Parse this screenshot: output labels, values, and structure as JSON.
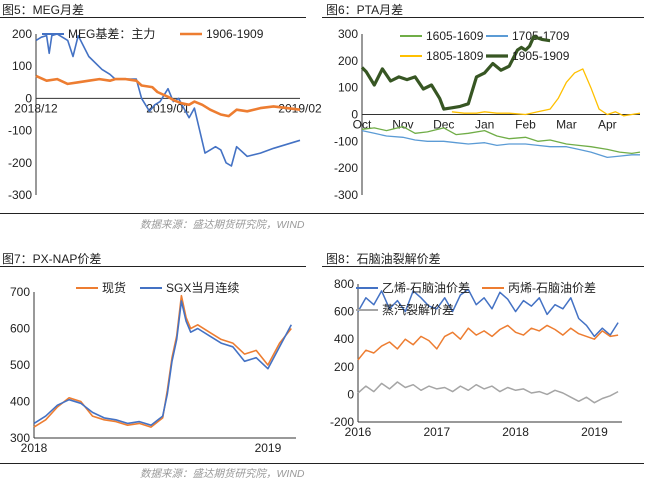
{
  "figures": {
    "fig5": {
      "title": "图5：MEG月差"
    },
    "fig6": {
      "title": "图6：PTA月差"
    },
    "fig7": {
      "title": "图7：PX-NAP价差"
    },
    "fig8": {
      "title": "图8：石脑油裂解价差"
    }
  },
  "sources": {
    "top": "数据来源：盛达期货研究院，WIND",
    "bottom": "数据来源：盛达期货研究院，WIND"
  },
  "chart_data": [
    {
      "id": "fig5",
      "type": "line",
      "ylim": [
        -300,
        200
      ],
      "yticks": [
        -300,
        -200,
        -100,
        0,
        100,
        200
      ],
      "xticks": [
        {
          "x": 0,
          "label": "2018/12"
        },
        {
          "x": 0.5,
          "label": "2019/01"
        },
        {
          "x": 1,
          "label": "2019/02"
        }
      ],
      "grid": false,
      "legend": "top-right",
      "series": [
        {
          "name": "MEG基差：主力",
          "color": "#4472C4",
          "width": 1.6,
          "x": [
            0,
            0.02,
            0.04,
            0.05,
            0.06,
            0.08,
            0.1,
            0.12,
            0.14,
            0.16,
            0.2,
            0.25,
            0.28,
            0.3,
            0.32,
            0.35,
            0.38,
            0.4,
            0.43,
            0.45,
            0.47,
            0.5,
            0.52,
            0.54,
            0.56,
            0.58,
            0.6,
            0.62,
            0.64,
            0.66,
            0.68,
            0.7,
            0.72,
            0.74,
            0.76,
            0.8,
            0.85,
            0.9,
            1.0
          ],
          "y": [
            180,
            190,
            195,
            140,
            195,
            200,
            190,
            180,
            130,
            195,
            130,
            90,
            75,
            60,
            60,
            60,
            60,
            0,
            -40,
            -20,
            -10,
            30,
            -10,
            0,
            -30,
            -60,
            -30,
            -100,
            -170,
            -160,
            -150,
            -160,
            -200,
            -210,
            -150,
            -180,
            -170,
            -155,
            -130
          ]
        },
        {
          "name": "1906-1909",
          "color": "#ED7D31",
          "width": 2.6,
          "x": [
            0,
            0.04,
            0.08,
            0.12,
            0.16,
            0.2,
            0.24,
            0.28,
            0.3,
            0.34,
            0.38,
            0.4,
            0.44,
            0.46,
            0.5,
            0.52,
            0.55,
            0.58,
            0.6,
            0.63,
            0.66,
            0.7,
            0.73,
            0.76,
            0.8,
            0.85,
            0.9,
            0.95,
            1.0
          ],
          "y": [
            70,
            55,
            60,
            45,
            50,
            55,
            60,
            55,
            60,
            60,
            55,
            40,
            35,
            20,
            5,
            -5,
            -15,
            -20,
            -10,
            -20,
            -35,
            -50,
            -55,
            -35,
            -40,
            -30,
            -25,
            -30,
            -35
          ]
        }
      ]
    },
    {
      "id": "fig6",
      "type": "line",
      "ylim": [
        -300,
        300
      ],
      "yticks": [
        -300,
        -200,
        -100,
        0,
        100,
        200,
        300
      ],
      "xticks": [
        {
          "x": 0,
          "label": "Oct"
        },
        {
          "x": 1,
          "label": "Nov"
        },
        {
          "x": 2,
          "label": "Dec"
        },
        {
          "x": 3,
          "label": "Jan"
        },
        {
          "x": 4,
          "label": "Feb"
        },
        {
          "x": 5,
          "label": "Mar"
        },
        {
          "x": 6,
          "label": "Apr"
        }
      ],
      "xlim": [
        0,
        6.8
      ],
      "grid": false,
      "legend": "top",
      "series": [
        {
          "name": "1605-1609",
          "color": "#70AD47",
          "width": 1.3,
          "x": [
            0,
            0.3,
            0.6,
            1,
            1.3,
            1.6,
            2,
            2.3,
            2.6,
            3,
            3.3,
            3.6,
            4,
            4.3,
            4.6,
            5,
            5.3,
            5.6,
            6,
            6.3,
            6.6,
            6.8
          ],
          "y": [
            -55,
            -50,
            -60,
            -45,
            -70,
            -65,
            -50,
            -75,
            -70,
            -60,
            -80,
            -90,
            -85,
            -100,
            -95,
            -110,
            -115,
            -120,
            -130,
            -140,
            -145,
            -140
          ]
        },
        {
          "name": "1705-1709",
          "color": "#5B9BD5",
          "width": 1.3,
          "x": [
            0,
            0.3,
            0.6,
            1,
            1.3,
            1.6,
            2,
            2.3,
            2.6,
            3,
            3.3,
            3.6,
            4,
            4.3,
            4.6,
            5,
            5.3,
            5.6,
            6,
            6.3,
            6.6,
            6.8
          ],
          "y": [
            -60,
            -70,
            -80,
            -85,
            -95,
            -100,
            -100,
            -105,
            -110,
            -105,
            -115,
            -110,
            -110,
            -115,
            -120,
            -120,
            -130,
            -140,
            -160,
            -155,
            -150,
            -150
          ]
        },
        {
          "name": "1805-1809",
          "color": "#FFC000",
          "width": 1.3,
          "x": [
            2.2,
            2.5,
            2.8,
            3,
            3.3,
            3.6,
            4,
            4.3,
            4.6,
            4.8,
            5,
            5.2,
            5.4,
            5.6,
            5.8,
            6,
            6.2,
            6.4,
            6.6,
            6.8
          ],
          "y": [
            10,
            5,
            5,
            10,
            5,
            5,
            0,
            10,
            20,
            60,
            120,
            155,
            170,
            100,
            20,
            0,
            10,
            -5,
            0,
            5
          ]
        },
        {
          "name": "1905-1909",
          "color": "#375623",
          "width": 3.2,
          "x": [
            0,
            0.1,
            0.3,
            0.5,
            0.7,
            0.9,
            1.1,
            1.3,
            1.5,
            1.7,
            1.9,
            2,
            2.2,
            2.4,
            2.6,
            2.8,
            3,
            3.2,
            3.4,
            3.6,
            3.8,
            3.9,
            4,
            4.1,
            4.2,
            4.4,
            4.6
          ],
          "y": [
            175,
            160,
            110,
            170,
            125,
            140,
            130,
            140,
            95,
            110,
            60,
            20,
            25,
            30,
            40,
            140,
            155,
            190,
            165,
            180,
            240,
            250,
            240,
            255,
            290,
            280,
            275
          ]
        }
      ]
    },
    {
      "id": "fig7",
      "type": "line",
      "ylim": [
        300,
        700
      ],
      "yticks": [
        300,
        400,
        500,
        600,
        700
      ],
      "xticks": [
        {
          "x": 0,
          "label": "2018"
        },
        {
          "x": 1,
          "label": "2019"
        }
      ],
      "xlim": [
        0,
        1.12
      ],
      "grid": false,
      "legend": "top-left",
      "series": [
        {
          "name": "现货",
          "color": "#ED7D31",
          "width": 1.6,
          "x": [
            0,
            0.05,
            0.1,
            0.15,
            0.2,
            0.25,
            0.3,
            0.35,
            0.4,
            0.45,
            0.5,
            0.55,
            0.57,
            0.59,
            0.61,
            0.63,
            0.65,
            0.67,
            0.7,
            0.75,
            0.8,
            0.85,
            0.9,
            0.95,
            1.0,
            1.05,
            1.1
          ],
          "y": [
            330,
            350,
            385,
            410,
            400,
            360,
            350,
            345,
            335,
            340,
            330,
            355,
            430,
            520,
            580,
            690,
            630,
            600,
            610,
            590,
            570,
            560,
            530,
            540,
            500,
            560,
            600
          ]
        },
        {
          "name": "SGX当月连续",
          "color": "#4472C4",
          "width": 1.6,
          "x": [
            0,
            0.05,
            0.1,
            0.15,
            0.2,
            0.25,
            0.3,
            0.35,
            0.4,
            0.45,
            0.5,
            0.55,
            0.57,
            0.59,
            0.61,
            0.63,
            0.65,
            0.67,
            0.7,
            0.75,
            0.8,
            0.85,
            0.9,
            0.95,
            1.0,
            1.05,
            1.1
          ],
          "y": [
            340,
            360,
            390,
            405,
            395,
            370,
            355,
            350,
            340,
            345,
            335,
            360,
            420,
            510,
            570,
            675,
            620,
            590,
            600,
            580,
            560,
            550,
            510,
            520,
            490,
            550,
            610
          ]
        }
      ]
    },
    {
      "id": "fig8",
      "type": "line",
      "ylim": [
        -200,
        800
      ],
      "yticks": [
        -200,
        0,
        200,
        400,
        600,
        800
      ],
      "xticks": [
        {
          "x": 2016,
          "label": "2016"
        },
        {
          "x": 2017,
          "label": "2017"
        },
        {
          "x": 2018,
          "label": "2018"
        },
        {
          "x": 2019,
          "label": "2019"
        }
      ],
      "xlim": [
        2016,
        2019.35
      ],
      "grid": false,
      "legend": "top",
      "series": [
        {
          "name": "乙烯-石脑油价差",
          "color": "#4472C4",
          "width": 1.5,
          "x": [
            2016,
            2016.1,
            2016.2,
            2016.3,
            2016.4,
            2016.5,
            2016.6,
            2016.7,
            2016.8,
            2016.9,
            2017,
            2017.1,
            2017.2,
            2017.3,
            2017.4,
            2017.5,
            2017.6,
            2017.7,
            2017.8,
            2017.9,
            2018,
            2018.1,
            2018.2,
            2018.3,
            2018.4,
            2018.5,
            2018.6,
            2018.7,
            2018.8,
            2018.9,
            2019,
            2019.1,
            2019.2,
            2019.3
          ],
          "y": [
            600,
            700,
            650,
            750,
            620,
            680,
            600,
            750,
            700,
            640,
            620,
            700,
            600,
            720,
            760,
            650,
            700,
            620,
            740,
            690,
            600,
            680,
            640,
            700,
            580,
            650,
            620,
            700,
            550,
            500,
            420,
            480,
            430,
            520
          ]
        },
        {
          "name": "丙烯-石脑油价差",
          "color": "#ED7D31",
          "width": 1.5,
          "x": [
            2016,
            2016.1,
            2016.2,
            2016.3,
            2016.4,
            2016.5,
            2016.6,
            2016.7,
            2016.8,
            2016.9,
            2017,
            2017.1,
            2017.2,
            2017.3,
            2017.4,
            2017.5,
            2017.6,
            2017.7,
            2017.8,
            2017.9,
            2018,
            2018.1,
            2018.2,
            2018.3,
            2018.4,
            2018.5,
            2018.6,
            2018.7,
            2018.8,
            2018.9,
            2019,
            2019.1,
            2019.2,
            2019.3
          ],
          "y": [
            250,
            320,
            300,
            350,
            380,
            330,
            400,
            360,
            420,
            390,
            330,
            420,
            450,
            400,
            480,
            430,
            460,
            420,
            470,
            500,
            450,
            430,
            480,
            460,
            500,
            470,
            430,
            480,
            440,
            420,
            400,
            460,
            420,
            430
          ]
        },
        {
          "name": "蒸汽裂解价差",
          "color": "#A5A5A5",
          "width": 1.5,
          "x": [
            2016,
            2016.1,
            2016.2,
            2016.3,
            2016.4,
            2016.5,
            2016.6,
            2016.7,
            2016.8,
            2016.9,
            2017,
            2017.1,
            2017.2,
            2017.3,
            2017.4,
            2017.5,
            2017.6,
            2017.7,
            2017.8,
            2017.9,
            2018,
            2018.1,
            2018.2,
            2018.3,
            2018.4,
            2018.5,
            2018.6,
            2018.7,
            2018.8,
            2018.9,
            2019,
            2019.1,
            2019.2,
            2019.3
          ],
          "y": [
            10,
            60,
            20,
            80,
            40,
            90,
            50,
            70,
            30,
            60,
            40,
            50,
            20,
            60,
            30,
            70,
            40,
            60,
            20,
            50,
            30,
            40,
            10,
            20,
            0,
            30,
            10,
            -20,
            -50,
            -20,
            -60,
            -30,
            -10,
            20
          ]
        }
      ]
    }
  ]
}
